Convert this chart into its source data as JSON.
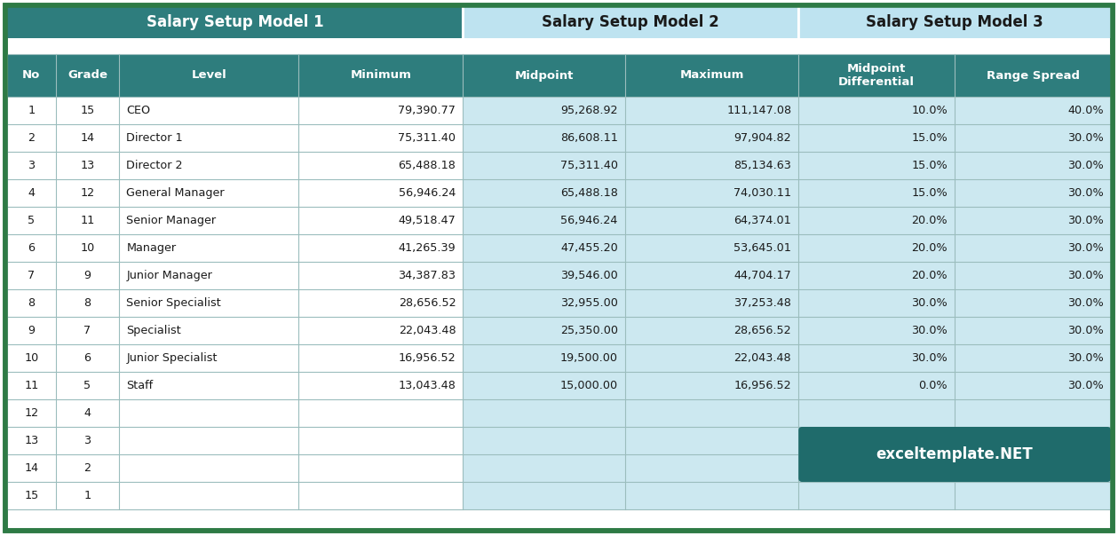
{
  "model1_header": "Salary Setup Model 1",
  "model2_header": "Salary Setup Model 2",
  "model3_header": "Salary Setup Model 3",
  "col_headers": [
    "No",
    "Grade",
    "Level",
    "Minimum",
    "Midpoint",
    "Maximum",
    "Midpoint\nDifferential",
    "Range Spread"
  ],
  "rows": [
    [
      "1",
      "15",
      "CEO",
      "79,390.77",
      "95,268.92",
      "111,147.08",
      "10.0%",
      "40.0%"
    ],
    [
      "2",
      "14",
      "Director 1",
      "75,311.40",
      "86,608.11",
      "97,904.82",
      "15.0%",
      "30.0%"
    ],
    [
      "3",
      "13",
      "Director 2",
      "65,488.18",
      "75,311.40",
      "85,134.63",
      "15.0%",
      "30.0%"
    ],
    [
      "4",
      "12",
      "General Manager",
      "56,946.24",
      "65,488.18",
      "74,030.11",
      "15.0%",
      "30.0%"
    ],
    [
      "5",
      "11",
      "Senior Manager",
      "49,518.47",
      "56,946.24",
      "64,374.01",
      "20.0%",
      "30.0%"
    ],
    [
      "6",
      "10",
      "Manager",
      "41,265.39",
      "47,455.20",
      "53,645.01",
      "20.0%",
      "30.0%"
    ],
    [
      "7",
      "9",
      "Junior Manager",
      "34,387.83",
      "39,546.00",
      "44,704.17",
      "20.0%",
      "30.0%"
    ],
    [
      "8",
      "8",
      "Senior Specialist",
      "28,656.52",
      "32,955.00",
      "37,253.48",
      "30.0%",
      "30.0%"
    ],
    [
      "9",
      "7",
      "Specialist",
      "22,043.48",
      "25,350.00",
      "28,656.52",
      "30.0%",
      "30.0%"
    ],
    [
      "10",
      "6",
      "Junior Specialist",
      "16,956.52",
      "19,500.00",
      "22,043.48",
      "30.0%",
      "30.0%"
    ],
    [
      "11",
      "5",
      "Staff",
      "13,043.48",
      "15,000.00",
      "16,956.52",
      "0.0%",
      "30.0%"
    ],
    [
      "12",
      "4",
      "",
      "",
      "",
      "",
      "",
      ""
    ],
    [
      "13",
      "3",
      "",
      "",
      "",
      "",
      "",
      ""
    ],
    [
      "14",
      "2",
      "",
      "",
      "",
      "",
      "",
      ""
    ],
    [
      "15",
      "1",
      "",
      "",
      "",
      "",
      "",
      ""
    ]
  ],
  "teal_header": "#2e7d7d",
  "teal_col_header": "#2e7d7d",
  "light_blue_header": "#bee3f0",
  "light_blue_cell": "#cce8f0",
  "white_cell": "#ffffff",
  "alt_white_cell": "#e8f4f8",
  "outer_border": "#2e7a45",
  "inner_border": "#9bbdbd",
  "watermark_bg": "#1f6b6b",
  "watermark_text": "exceltemplate.NET",
  "watermark_text_color": "#ffffff",
  "col_header_text": "#ffffff",
  "data_text": "#1a1a1a"
}
